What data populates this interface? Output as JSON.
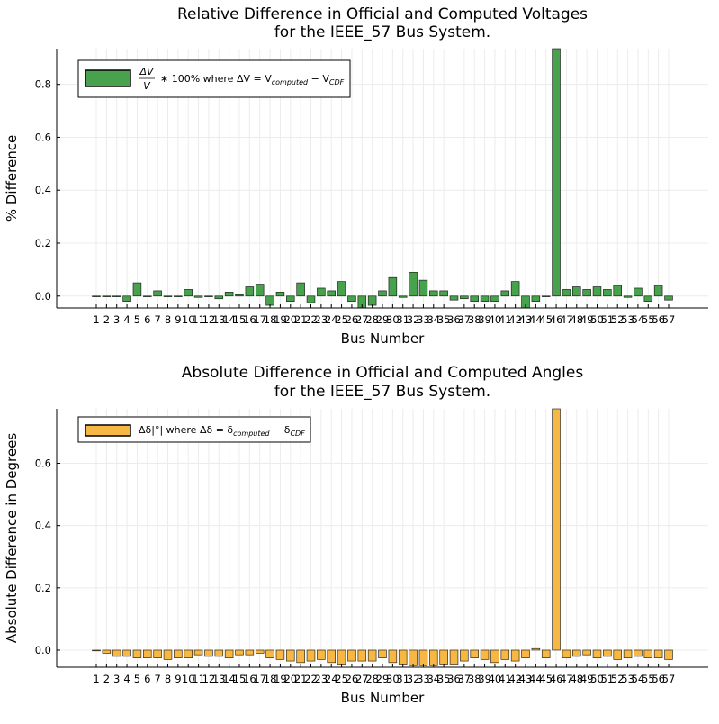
{
  "chart_data": [
    {
      "type": "bar",
      "title": [
        "Relative Difference in Official and Computed Voltages",
        "for the IEEE_57 Bus System."
      ],
      "xlabel": "Bus Number",
      "ylabel": "% Difference",
      "ylim": [
        -0.045,
        0.935
      ],
      "yticks": [
        0.0,
        0.2,
        0.4,
        0.6,
        0.8
      ],
      "ytick_labels": [
        "0.0",
        "0.2",
        "0.4",
        "0.6",
        "0.8"
      ],
      "color": "#48a14d",
      "legend": {
        "position": "top-left",
        "entry": "ΔV/V * 100% where ΔV = V_computed − V_CDF",
        "parts": {
          "frac_num": "ΔV",
          "frac_den": "V",
          "suffix": "∗ 100% where ΔV = V",
          "sub1": "computed",
          "minus": " − V",
          "sub2": "CDF"
        }
      },
      "categories": [
        "1",
        "2",
        "3",
        "4",
        "5",
        "6",
        "7",
        "8",
        "9",
        "10",
        "11",
        "12",
        "13",
        "14",
        "15",
        "16",
        "17",
        "18",
        "19",
        "20",
        "21",
        "22",
        "23",
        "24",
        "25",
        "26",
        "27",
        "28",
        "29",
        "30",
        "31",
        "32",
        "33",
        "34",
        "35",
        "36",
        "37",
        "38",
        "39",
        "40",
        "41",
        "42",
        "43",
        "44",
        "45",
        "46",
        "47",
        "48",
        "49",
        "50",
        "51",
        "52",
        "53",
        "54",
        "55",
        "56",
        "57"
      ],
      "values": [
        0.0,
        0.0,
        0.0,
        -0.02,
        0.05,
        0.0,
        0.02,
        0.0,
        0.0,
        0.025,
        -0.005,
        0.0,
        -0.01,
        0.015,
        0.005,
        0.035,
        0.045,
        -0.035,
        0.015,
        -0.02,
        0.05,
        -0.025,
        0.03,
        0.02,
        0.055,
        -0.02,
        -0.045,
        -0.035,
        0.02,
        0.07,
        -0.005,
        0.09,
        0.06,
        0.02,
        0.02,
        -0.015,
        -0.01,
        -0.02,
        -0.02,
        -0.02,
        0.02,
        0.055,
        -0.045,
        -0.02,
        0.0,
        0.935,
        0.025,
        0.035,
        0.025,
        0.035,
        0.025,
        0.04,
        -0.005,
        0.03,
        -0.02,
        0.04,
        -0.015
      ]
    },
    {
      "type": "bar",
      "title": [
        "Absolute Difference in Official and Computed Angles",
        "for the IEEE_57 Bus System."
      ],
      "xlabel": "Bus Number",
      "ylabel": "Absolute Difference in Degrees",
      "ylim": [
        -0.055,
        0.775
      ],
      "yticks": [
        0.0,
        0.2,
        0.4,
        0.6
      ],
      "ytick_labels": [
        "0.0",
        "0.2",
        "0.4",
        "0.6"
      ],
      "color": "#f7b744",
      "legend": {
        "position": "top-left",
        "entry": "Δδ|°| where Δδ = δ_computed − δ_CDF",
        "parts": {
          "prefix": "Δδ|°| where Δδ = δ",
          "sub1": "computed",
          "minus": " − δ",
          "sub2": "CDF"
        }
      },
      "categories": [
        "1",
        "2",
        "3",
        "4",
        "5",
        "6",
        "7",
        "8",
        "9",
        "10",
        "11",
        "12",
        "13",
        "14",
        "15",
        "16",
        "17",
        "18",
        "19",
        "20",
        "21",
        "22",
        "23",
        "24",
        "25",
        "26",
        "27",
        "28",
        "29",
        "30",
        "31",
        "32",
        "33",
        "34",
        "35",
        "36",
        "37",
        "38",
        "39",
        "40",
        "41",
        "42",
        "43",
        "44",
        "45",
        "46",
        "47",
        "48",
        "49",
        "50",
        "51",
        "52",
        "53",
        "54",
        "55",
        "56",
        "57"
      ],
      "values": [
        0.0,
        -0.01,
        -0.02,
        -0.02,
        -0.025,
        -0.025,
        -0.025,
        -0.03,
        -0.025,
        -0.025,
        -0.015,
        -0.02,
        -0.02,
        -0.025,
        -0.015,
        -0.015,
        -0.01,
        -0.025,
        -0.03,
        -0.035,
        -0.04,
        -0.035,
        -0.03,
        -0.04,
        -0.045,
        -0.035,
        -0.035,
        -0.035,
        -0.025,
        -0.04,
        -0.045,
        -0.05,
        -0.05,
        -0.05,
        -0.045,
        -0.045,
        -0.035,
        -0.025,
        -0.03,
        -0.04,
        -0.03,
        -0.035,
        -0.025,
        0.005,
        -0.025,
        0.775,
        -0.025,
        -0.02,
        -0.015,
        -0.025,
        -0.02,
        -0.03,
        -0.025,
        -0.02,
        -0.025,
        -0.025,
        -0.03
      ]
    }
  ]
}
